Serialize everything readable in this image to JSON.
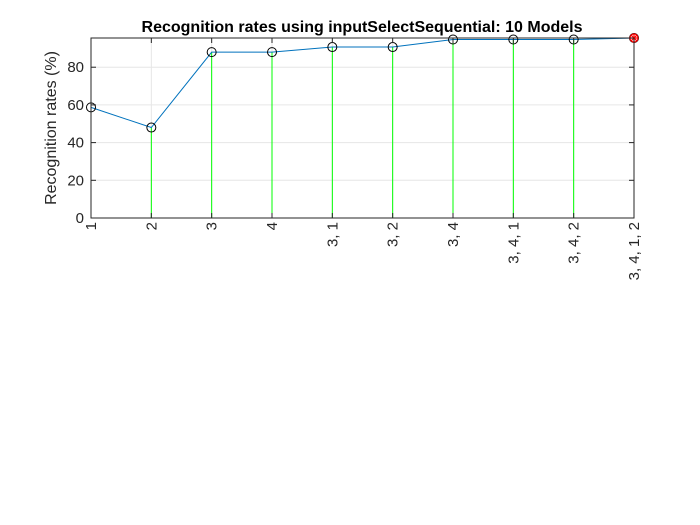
{
  "chart_data": {
    "type": "line",
    "title": "Recognition rates using inputSelectSequential: 10 Models",
    "xlabel": "",
    "ylabel": "Recognition rates (%)",
    "categories": [
      "1",
      "2",
      "3",
      "4",
      "3, 1",
      "3, 2",
      "3, 4",
      "3, 4, 1",
      "3, 4, 2",
      "3, 4, 1, 2"
    ],
    "values": [
      58.7,
      48.0,
      88.0,
      88.0,
      90.7,
      90.7,
      94.7,
      94.7,
      94.7,
      95.5
    ],
    "ylim": [
      0,
      95.5
    ],
    "yticks": [
      0,
      20,
      40,
      60,
      80
    ],
    "grid": true,
    "best_index": 9,
    "colors": {
      "line": "#0072BD",
      "stem": "#00FF00",
      "marker": "#000000",
      "best": "#FF0000"
    }
  }
}
